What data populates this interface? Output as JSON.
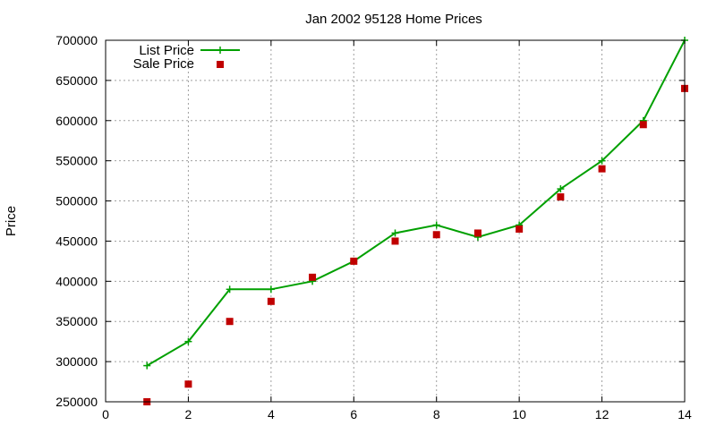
{
  "chart_data": {
    "type": "line",
    "title": "Jan 2002 95128 Home Prices",
    "xlabel": "",
    "ylabel": "Price",
    "xlim": [
      0,
      14
    ],
    "ylim": [
      250000,
      700000
    ],
    "x_ticks": [
      0,
      2,
      4,
      6,
      8,
      10,
      12,
      14
    ],
    "y_ticks": [
      250000,
      300000,
      350000,
      400000,
      450000,
      500000,
      550000,
      600000,
      650000,
      700000
    ],
    "grid": true,
    "legend_position": "top-left",
    "series": [
      {
        "name": "List Price",
        "style": "line+cross-markers",
        "color": "#00a000",
        "x": [
          1,
          2,
          3,
          4,
          5,
          6,
          7,
          8,
          9,
          10,
          11,
          12,
          13,
          14
        ],
        "y": [
          295000,
          325000,
          390000,
          390000,
          400000,
          425000,
          460000,
          470000,
          455000,
          470000,
          515000,
          550000,
          600000,
          700000
        ]
      },
      {
        "name": "Sale Price",
        "style": "square-markers",
        "color": "#c00000",
        "x": [
          1,
          2,
          3,
          4,
          5,
          6,
          7,
          8,
          9,
          10,
          11,
          12,
          13,
          14
        ],
        "y": [
          250000,
          272000,
          350000,
          375000,
          405000,
          425000,
          450000,
          458000,
          460000,
          465000,
          505000,
          540000,
          595000,
          640000
        ]
      }
    ]
  }
}
